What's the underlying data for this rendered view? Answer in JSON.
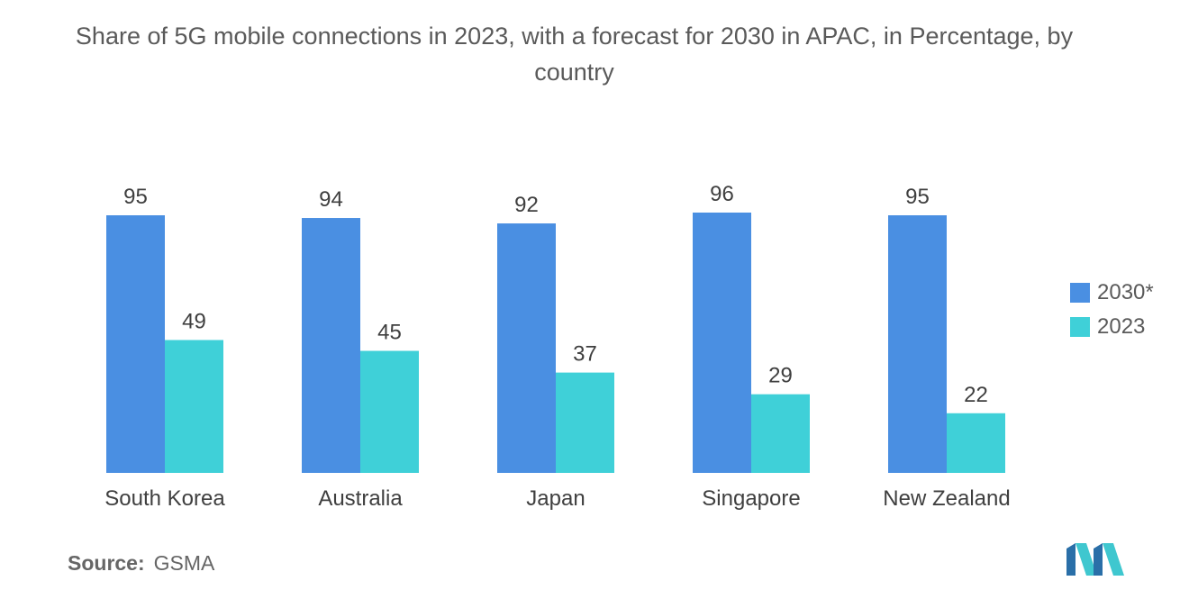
{
  "title": "Share of 5G mobile connections in 2023, with a forecast for 2030 in APAC, in Percentage, by country",
  "source": {
    "label": "Source:",
    "value": "GSMA"
  },
  "colors": {
    "series_2030": "#4a8fe2",
    "series_2023": "#3fd0d8"
  },
  "chart_data": {
    "type": "bar",
    "categories": [
      "South Korea",
      "Australia",
      "Japan",
      "Singapore",
      "New Zealand"
    ],
    "series": [
      {
        "name": "2030*",
        "values": [
          95,
          94,
          92,
          96,
          95
        ]
      },
      {
        "name": "2023",
        "values": [
          49,
          45,
          37,
          29,
          22
        ]
      }
    ],
    "ylim": [
      0,
      100
    ],
    "grid": false,
    "legend_position": "right"
  }
}
